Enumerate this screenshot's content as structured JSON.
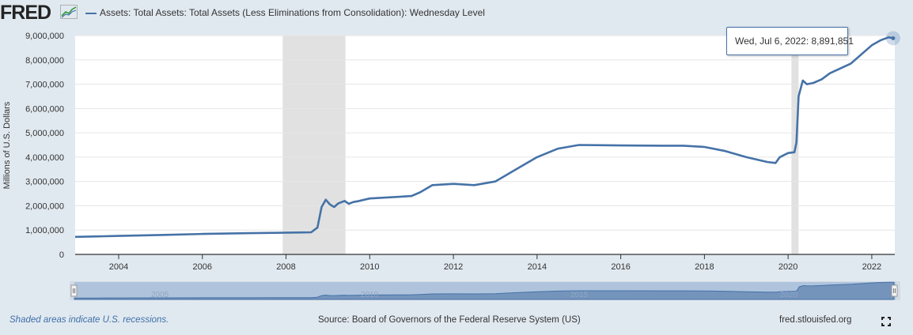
{
  "header": {
    "logo_text": "FRED",
    "series_title": "Assets: Total Assets: Total Assets (Less Eliminations from Consolidation): Wednesday Level"
  },
  "tooltip": {
    "text": "Wed, Jul 6, 2022: 8,891,851"
  },
  "footer": {
    "recession_note": "Shaded areas indicate U.S. recessions.",
    "source": "Source: Board of Governors of the Federal Reserve System (US)",
    "site": "fred.stlouisfed.org"
  },
  "navigator": {
    "tick_labels": [
      "2005",
      "2010",
      "2015",
      "2020"
    ]
  },
  "colors": {
    "line": "#4572a7",
    "recession": "#e1e1e1",
    "background": "#e1e9f0"
  },
  "chart_data": {
    "type": "line",
    "title": "Assets: Total Assets: Total Assets (Less Eliminations from Consolidation): Wednesday Level",
    "xlabel": "",
    "ylabel": "Millions of U.S. Dollars",
    "xlim": [
      2002.96,
      2022.55
    ],
    "ylim": [
      0,
      9000000
    ],
    "x_ticks": [
      "2004",
      "2006",
      "2008",
      "2010",
      "2012",
      "2014",
      "2016",
      "2018",
      "2020",
      "2022"
    ],
    "y_ticks": [
      "0",
      "1,000,000",
      "2,000,000",
      "3,000,000",
      "4,000,000",
      "5,000,000",
      "6,000,000",
      "7,000,000",
      "8,000,000",
      "9,000,000"
    ],
    "grid": true,
    "recessions": [
      [
        2007.92,
        2009.42
      ],
      [
        2020.08,
        2020.25
      ]
    ],
    "series": [
      {
        "x": [
          2002.96,
          2003.5,
          2004,
          2005,
          2006,
          2007,
          2007.9,
          2008.6,
          2008.75,
          2008.85,
          2008.95,
          2009.05,
          2009.15,
          2009.25,
          2009.4,
          2009.5,
          2009.6,
          2009.75,
          2010,
          2010.5,
          2011,
          2011.2,
          2011.5,
          2012,
          2012.5,
          2013,
          2013.5,
          2014,
          2014.5,
          2015,
          2016,
          2017,
          2017.5,
          2018,
          2018.5,
          2019,
          2019.5,
          2019.7,
          2019.8,
          2020.0,
          2020.15,
          2020.2,
          2020.25,
          2020.35,
          2020.45,
          2020.6,
          2020.8,
          2021,
          2021.5,
          2022,
          2022.2,
          2022.4,
          2022.51
        ],
        "y": [
          720000,
          740000,
          760000,
          800000,
          840000,
          870000,
          890000,
          910000,
          1100000,
          1950000,
          2250000,
          2050000,
          1950000,
          2100000,
          2200000,
          2080000,
          2150000,
          2200000,
          2300000,
          2350000,
          2400000,
          2550000,
          2850000,
          2900000,
          2850000,
          3000000,
          3500000,
          4000000,
          4350000,
          4500000,
          4480000,
          4470000,
          4470000,
          4420000,
          4250000,
          4000000,
          3800000,
          3760000,
          4000000,
          4170000,
          4200000,
          4600000,
          6500000,
          7150000,
          7000000,
          7050000,
          7200000,
          7450000,
          7850000,
          8600000,
          8800000,
          8930000,
          8891851
        ]
      }
    ]
  }
}
